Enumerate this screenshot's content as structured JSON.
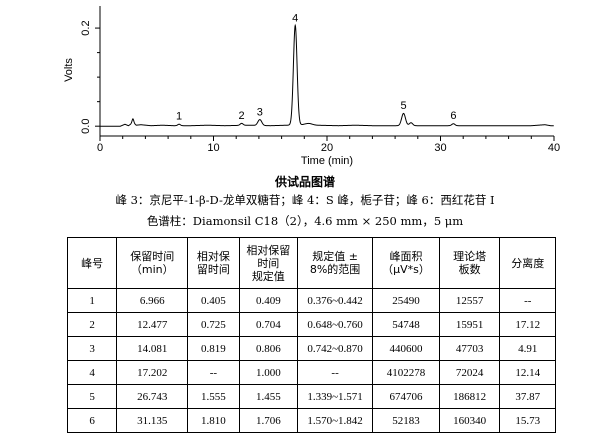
{
  "chart_data": {
    "type": "line",
    "xlabel": "Time (min)",
    "ylabel": "Volts",
    "xlim": [
      0,
      40
    ],
    "ylim": [
      -0.02,
      0.245
    ],
    "x_ticks": [
      "0",
      "10",
      "20",
      "30",
      "40"
    ],
    "x_tick_values": [
      0,
      10,
      20,
      30,
      40
    ],
    "y_ticks": [
      "0.0",
      "0.2"
    ],
    "y_tick_values": [
      0.0,
      0.2
    ],
    "grid": false,
    "baseline": [
      [
        0,
        0
      ],
      [
        1.8,
        0
      ],
      [
        2.2,
        0.004
      ],
      [
        2.5,
        0.001
      ],
      [
        2.9,
        0.007
      ],
      [
        3.2,
        0.002
      ],
      [
        3.6,
        0.003
      ],
      [
        4.5,
        0.001
      ],
      [
        5.5,
        0.002
      ],
      [
        6.5,
        0.001
      ],
      [
        8,
        0.001
      ],
      [
        9.5,
        0.002
      ],
      [
        11,
        0.001
      ],
      [
        13,
        0.002
      ],
      [
        15,
        0.001
      ],
      [
        18,
        0.003
      ],
      [
        19,
        0.002
      ],
      [
        21,
        0.001
      ],
      [
        22.5,
        0.002
      ],
      [
        24,
        0.001
      ],
      [
        25.5,
        0.001
      ],
      [
        28,
        0.001
      ],
      [
        30,
        0.001
      ],
      [
        33,
        0.001
      ],
      [
        36,
        0.001
      ],
      [
        38,
        0.001
      ],
      [
        39.2,
        0.003
      ],
      [
        39.7,
        0.001
      ],
      [
        40,
        0.001
      ]
    ],
    "peaks": [
      {
        "label": "1",
        "x": 6.966,
        "y": 0.003,
        "w": 0.12
      },
      {
        "label": "2",
        "x": 12.477,
        "y": 0.004,
        "w": 0.13
      },
      {
        "label": "3",
        "x": 14.081,
        "y": 0.012,
        "w": 0.17
      },
      {
        "label": "4",
        "x": 17.202,
        "y": 0.203,
        "w": 0.16
      },
      {
        "label": "5",
        "x": 26.743,
        "y": 0.025,
        "w": 0.17
      },
      {
        "label": "6",
        "x": 31.135,
        "y": 0.004,
        "w": 0.14
      }
    ],
    "minor_peaks": [
      {
        "x": 2.9,
        "y": 0.008,
        "w": 0.08
      },
      {
        "x": 27.4,
        "y": 0.006,
        "w": 0.15
      },
      {
        "x": 18.4,
        "y": 0.003,
        "w": 0.3
      }
    ]
  },
  "caption": {
    "title": "供试品图谱",
    "line1": "峰 3：京尼平-1-β-D-龙单双糖苷；峰 4：S 峰，栀子苷；峰 6：西红花苷 I",
    "line2": "色谱柱：Diamonsil C18（2），4.6 mm × 250 mm，5 μm"
  },
  "table": {
    "headers": [
      [
        "峰号"
      ],
      [
        "保留时间",
        "（min）"
      ],
      [
        "相对保",
        "留时间"
      ],
      [
        "相对保留",
        "时间",
        "规定值"
      ],
      [
        "规定值 ±",
        "8%的范围"
      ],
      [
        "峰面积",
        "（μV*s）"
      ],
      [
        "理论塔",
        "板数"
      ],
      [
        "分离度"
      ]
    ],
    "rows": [
      [
        "1",
        "6.966",
        "0.405",
        "0.409",
        "0.376~0.442",
        "25490",
        "12557",
        "--"
      ],
      [
        "2",
        "12.477",
        "0.725",
        "0.704",
        "0.648~0.760",
        "54748",
        "15951",
        "17.12"
      ],
      [
        "3",
        "14.081",
        "0.819",
        "0.806",
        "0.742~0.870",
        "440600",
        "47703",
        "4.91"
      ],
      [
        "4",
        "17.202",
        "--",
        "1.000",
        "--",
        "4102278",
        "72024",
        "12.14"
      ],
      [
        "5",
        "26.743",
        "1.555",
        "1.455",
        "1.339~1.571",
        "674706",
        "186812",
        "37.87"
      ],
      [
        "6",
        "31.135",
        "1.810",
        "1.706",
        "1.570~1.842",
        "52183",
        "160340",
        "15.73"
      ]
    ]
  }
}
